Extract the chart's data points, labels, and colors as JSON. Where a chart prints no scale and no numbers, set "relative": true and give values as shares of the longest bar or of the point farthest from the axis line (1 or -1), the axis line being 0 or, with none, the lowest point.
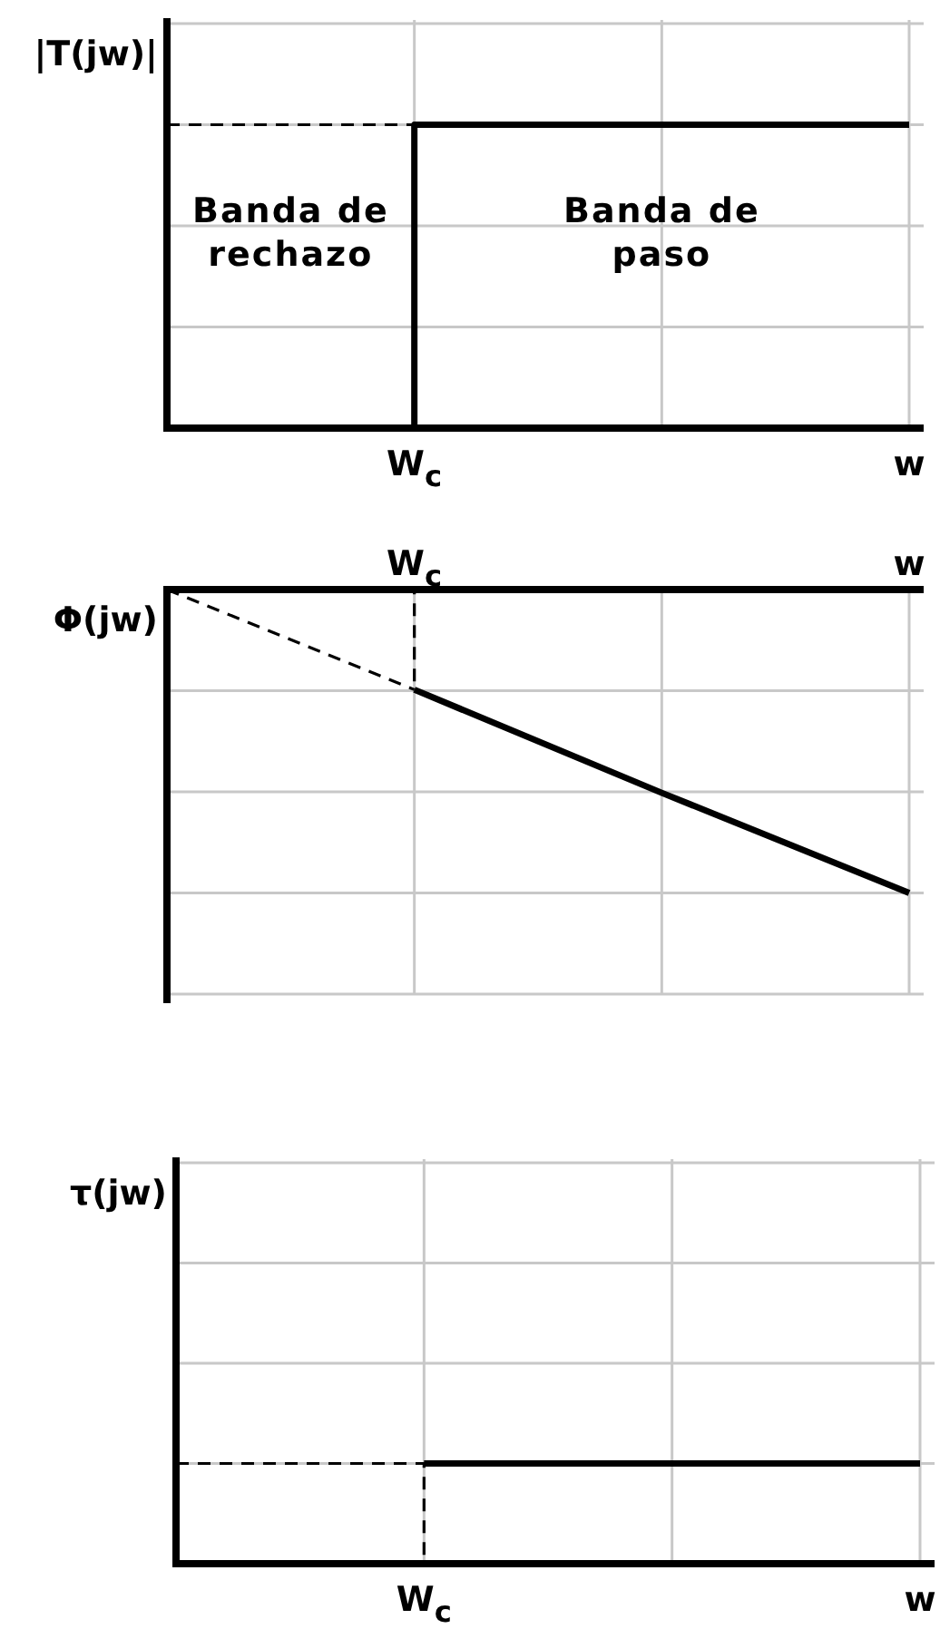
{
  "chart_data": [
    {
      "type": "line",
      "ylabel": "|T(jw)|",
      "relative": true,
      "categories": [
        null,
        "W$_{c}$",
        null,
        "w"
      ],
      "grid": true,
      "annotations": [
        "Banda de rechazo",
        "Banda de paso"
      ],
      "series": [
        {
          "type": "step",
          "values": [
            0,
            1,
            1,
            1
          ],
          "color": "#000000",
          "line_style": "solid"
        },
        {
          "values": [
            1,
            1,
            null,
            null
          ],
          "color": "#000000",
          "line_style": "dashed"
        }
      ]
    },
    {
      "type": "line",
      "ylabel": "Φ(jw)",
      "relative": true,
      "categories": [
        null,
        "W$_{c}$",
        null,
        "w"
      ],
      "grid": true,
      "series": [
        {
          "values": [
            null,
            -0.33,
            -0.67,
            -1
          ],
          "color": "#000000",
          "line_style": "solid"
        },
        {
          "values": [
            0,
            -0.33,
            null,
            null
          ],
          "color": "#000000",
          "line_style": "dashed"
        },
        {
          "type": "step",
          "values": [
            0,
            -0.33,
            null,
            null
          ],
          "color": "#000000",
          "line_style": "dashed"
        }
      ]
    },
    {
      "type": "line",
      "ylabel": "τ(jw)",
      "relative": true,
      "categories": [
        null,
        "W$_{c}$",
        null,
        "w"
      ],
      "grid": true,
      "series": [
        {
          "values": [
            null,
            1,
            1,
            1
          ],
          "color": "#000000",
          "line_style": "solid"
        },
        {
          "type": "step",
          "values": [
            1,
            0,
            null,
            null
          ],
          "color": "#000000",
          "line_style": "dashed"
        }
      ]
    }
  ]
}
